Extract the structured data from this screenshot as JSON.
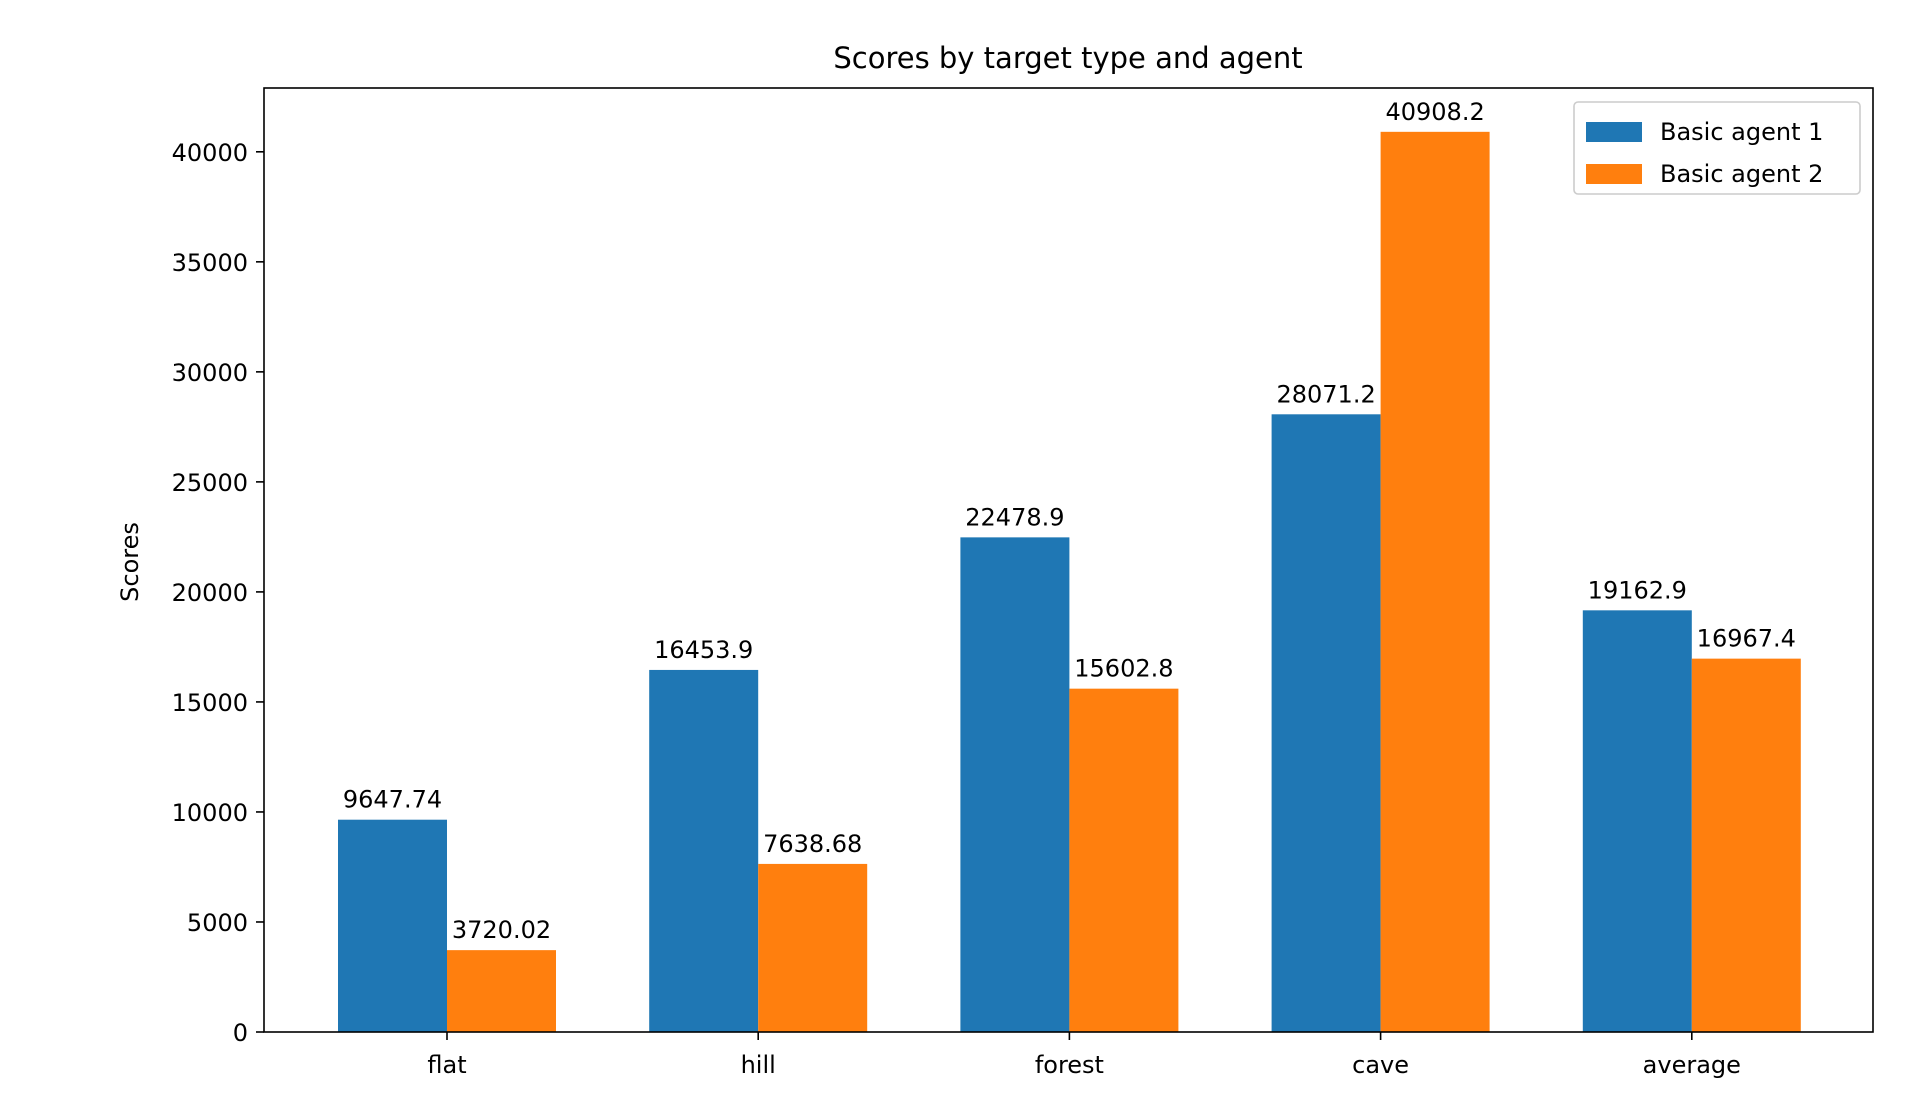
{
  "chart_data": {
    "type": "bar",
    "title": "Scores by target type and agent",
    "xlabel": "",
    "ylabel": "Scores",
    "categories": [
      "flat",
      "hill",
      "forest",
      "cave",
      "average"
    ],
    "series": [
      {
        "name": "Basic agent 1",
        "color": "#1f77b4",
        "values": [
          9647.74,
          16453.9,
          22478.9,
          28071.2,
          19162.9
        ],
        "labels": [
          "9647.74",
          "16453.9",
          "22478.9",
          "28071.2",
          "19162.9"
        ]
      },
      {
        "name": "Basic agent 2",
        "color": "#ff7f0e",
        "values": [
          3720.02,
          7638.68,
          15602.8,
          40908.2,
          16967.4
        ],
        "labels": [
          "3720.02",
          "7638.68",
          "15602.8",
          "40908.2",
          "16967.4"
        ]
      }
    ],
    "ylim": [
      0,
      42900
    ],
    "yticks": [
      0,
      5000,
      10000,
      15000,
      20000,
      25000,
      30000,
      35000,
      40000
    ],
    "ytick_labels": [
      "0",
      "5000",
      "10000",
      "15000",
      "20000",
      "25000",
      "30000",
      "35000",
      "40000"
    ],
    "grid": false,
    "legend": "top-right"
  }
}
